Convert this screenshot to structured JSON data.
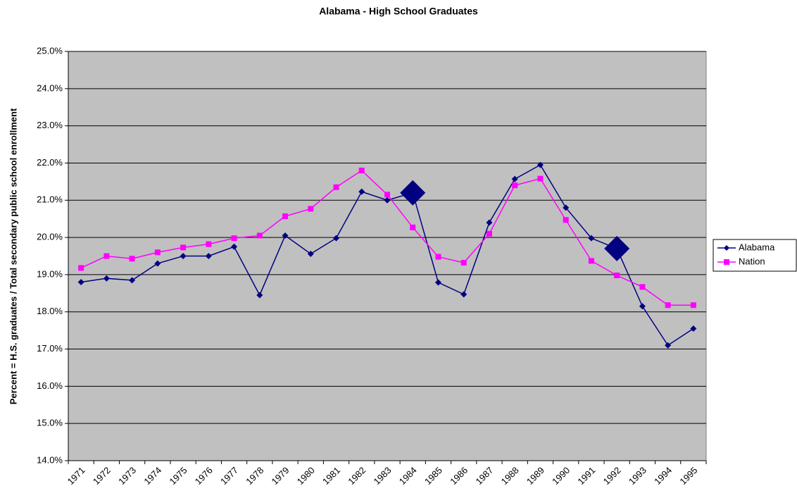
{
  "chart_data": {
    "type": "line",
    "title": "Alabama - High School Graduates",
    "y_label": "Percent = H.S. graduates / Total secondary public school enrollment",
    "categories": [
      "1971",
      "1972",
      "1973",
      "1974",
      "1975",
      "1976",
      "1977",
      "1978",
      "1979",
      "1980",
      "1981",
      "1982",
      "1983",
      "1984",
      "1985",
      "1986",
      "1987",
      "1988",
      "1989",
      "1990",
      "1991",
      "1992",
      "1993",
      "1994",
      "1995"
    ],
    "series": [
      {
        "name": "Alabama",
        "color": "#000080",
        "marker": "diamond",
        "values": [
          18.8,
          18.9,
          18.85,
          19.3,
          19.5,
          19.5,
          19.75,
          18.45,
          20.05,
          19.56,
          19.98,
          21.23,
          21.0,
          21.2,
          18.79,
          18.47,
          20.4,
          21.57,
          21.95,
          20.8,
          19.98,
          19.7,
          18.15,
          17.1,
          17.55
        ]
      },
      {
        "name": "Nation",
        "color": "#ff00ff",
        "marker": "square",
        "values": [
          19.18,
          19.5,
          19.43,
          19.6,
          19.73,
          19.82,
          19.98,
          20.05,
          20.57,
          20.77,
          21.35,
          21.8,
          21.15,
          20.27,
          19.48,
          19.32,
          20.1,
          21.4,
          21.58,
          20.47,
          19.37,
          18.98,
          18.67,
          18.18,
          18.18
        ]
      }
    ],
    "highlight_categories": [
      "1984",
      "1992"
    ],
    "ylim": [
      14,
      25
    ],
    "yticks": [
      {
        "value": 14,
        "label": "14.0%"
      },
      {
        "value": 15,
        "label": "15.0%"
      },
      {
        "value": 16,
        "label": "16.0%"
      },
      {
        "value": 17,
        "label": "17.0%"
      },
      {
        "value": 18,
        "label": "18.0%"
      },
      {
        "value": 19,
        "label": "19.0%"
      },
      {
        "value": 20,
        "label": "20.0%"
      },
      {
        "value": 21,
        "label": "21.0%"
      },
      {
        "value": 22,
        "label": "22.0%"
      },
      {
        "value": 23,
        "label": "23.0%"
      },
      {
        "value": 24,
        "label": "24.0%"
      },
      {
        "value": 25,
        "label": "25.0%"
      }
    ],
    "grid": true,
    "legend": "right"
  }
}
